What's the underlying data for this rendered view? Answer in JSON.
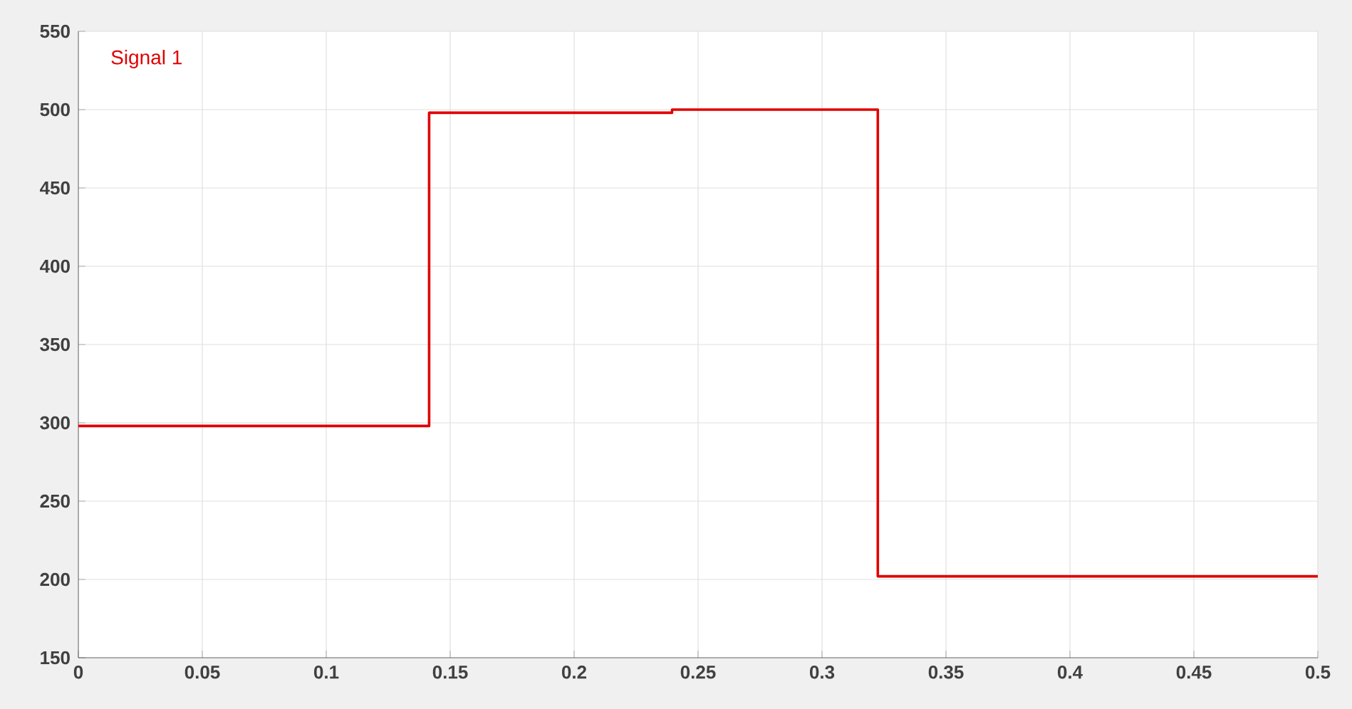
{
  "chart_data": {
    "type": "step",
    "x": [
      0,
      0.1415,
      0.2395,
      0.3225,
      0.5
    ],
    "series": [
      {
        "name": "Signal 1",
        "color": "#e00000",
        "values": [
          298,
          498,
          500,
          202,
          202
        ]
      }
    ],
    "xlim": [
      0,
      0.5
    ],
    "xticks": [
      0,
      0.05,
      0.1,
      0.15,
      0.2,
      0.25,
      0.3,
      0.35,
      0.4,
      0.45,
      0.5
    ],
    "ylim": [
      150,
      550
    ],
    "yticks": [
      150,
      200,
      250,
      300,
      350,
      400,
      450,
      500,
      550
    ],
    "grid": true,
    "legend": "top left",
    "marker": "none",
    "line_style": "solid"
  }
}
